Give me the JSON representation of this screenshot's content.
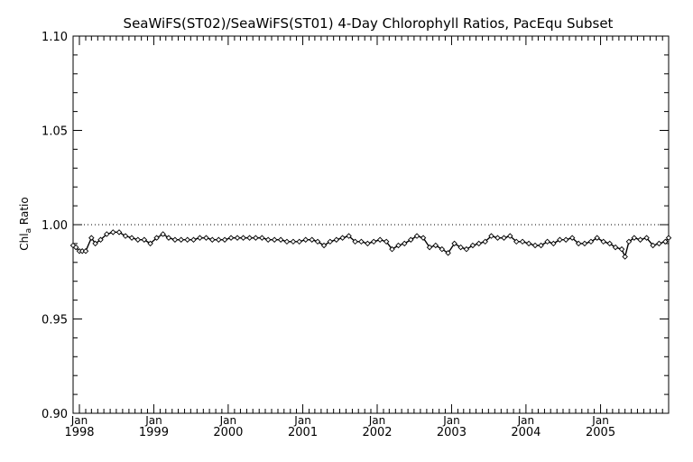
{
  "chart_data": {
    "type": "line",
    "title": "SeaWiFS(ST02)/SeaWiFS(ST01) 4-Day Chlorophyll Ratios, PacEqu Subset",
    "ylabel": "Chl",
    "ylabel_sub": "a",
    "ylabel_suffix": " Ratio",
    "xlabel": "",
    "ylim": [
      0.9,
      1.1
    ],
    "xlim": [
      "1997-12-01",
      "2005-12-01"
    ],
    "yticks": [
      {
        "value": 0.9,
        "label": "0.90"
      },
      {
        "value": 0.95,
        "label": "0.95"
      },
      {
        "value": 1.0,
        "label": "1.00"
      },
      {
        "value": 1.05,
        "label": "1.05"
      },
      {
        "value": 1.1,
        "label": "1.10"
      }
    ],
    "xticks": [
      {
        "date": "1998-01-01",
        "month": "Jan",
        "year": "1998"
      },
      {
        "date": "1999-01-01",
        "month": "Jan",
        "year": "1999"
      },
      {
        "date": "2000-01-01",
        "month": "Jan",
        "year": "2000"
      },
      {
        "date": "2001-01-01",
        "month": "Jan",
        "year": "2001"
      },
      {
        "date": "2002-01-01",
        "month": "Jan",
        "year": "2002"
      },
      {
        "date": "2003-01-01",
        "month": "Jan",
        "year": "2003"
      },
      {
        "date": "2004-01-01",
        "month": "Jan",
        "year": "2004"
      },
      {
        "date": "2005-01-01",
        "month": "Jan",
        "year": "2005"
      }
    ],
    "reference_line": 1.0,
    "series": [
      {
        "points": [
          [
            "1997-12-01",
            0.989
          ],
          [
            "1997-12-15",
            0.988
          ],
          [
            "1998-01-01",
            0.986
          ],
          [
            "1998-01-15",
            0.986
          ],
          [
            "1998-02-01",
            0.986
          ],
          [
            "1998-03-01",
            0.993
          ],
          [
            "1998-03-20",
            0.99
          ],
          [
            "1998-04-15",
            0.992
          ],
          [
            "1998-05-15",
            0.995
          ],
          [
            "1998-06-15",
            0.996
          ],
          [
            "1998-07-15",
            0.996
          ],
          [
            "1998-08-15",
            0.994
          ],
          [
            "1998-09-15",
            0.993
          ],
          [
            "1998-10-15",
            0.992
          ],
          [
            "1998-11-15",
            0.992
          ],
          [
            "1998-12-15",
            0.99
          ],
          [
            "1999-01-15",
            0.993
          ],
          [
            "1999-02-15",
            0.995
          ],
          [
            "1999-03-15",
            0.993
          ],
          [
            "1999-04-15",
            0.992
          ],
          [
            "1999-05-15",
            0.992
          ],
          [
            "1999-06-15",
            0.992
          ],
          [
            "1999-07-15",
            0.992
          ],
          [
            "1999-08-15",
            0.993
          ],
          [
            "1999-09-15",
            0.993
          ],
          [
            "1999-10-15",
            0.992
          ],
          [
            "1999-11-15",
            0.992
          ],
          [
            "1999-12-15",
            0.992
          ],
          [
            "2000-01-15",
            0.993
          ],
          [
            "2000-02-15",
            0.993
          ],
          [
            "2000-03-15",
            0.993
          ],
          [
            "2000-04-15",
            0.993
          ],
          [
            "2000-05-15",
            0.993
          ],
          [
            "2000-06-15",
            0.993
          ],
          [
            "2000-07-15",
            0.992
          ],
          [
            "2000-08-15",
            0.992
          ],
          [
            "2000-09-15",
            0.992
          ],
          [
            "2000-10-15",
            0.991
          ],
          [
            "2000-11-15",
            0.991
          ],
          [
            "2000-12-15",
            0.991
          ],
          [
            "2001-01-15",
            0.992
          ],
          [
            "2001-02-15",
            0.992
          ],
          [
            "2001-03-15",
            0.991
          ],
          [
            "2001-04-15",
            0.989
          ],
          [
            "2001-05-15",
            0.991
          ],
          [
            "2001-06-15",
            0.992
          ],
          [
            "2001-07-15",
            0.993
          ],
          [
            "2001-08-15",
            0.994
          ],
          [
            "2001-09-15",
            0.991
          ],
          [
            "2001-10-15",
            0.991
          ],
          [
            "2001-11-15",
            0.99
          ],
          [
            "2001-12-15",
            0.991
          ],
          [
            "2002-01-15",
            0.992
          ],
          [
            "2002-02-15",
            0.991
          ],
          [
            "2002-03-15",
            0.987
          ],
          [
            "2002-04-15",
            0.989
          ],
          [
            "2002-05-15",
            0.99
          ],
          [
            "2002-06-15",
            0.992
          ],
          [
            "2002-07-15",
            0.994
          ],
          [
            "2002-08-15",
            0.993
          ],
          [
            "2002-09-15",
            0.988
          ],
          [
            "2002-10-15",
            0.989
          ],
          [
            "2002-11-15",
            0.987
          ],
          [
            "2002-12-15",
            0.985
          ],
          [
            "2003-01-15",
            0.99
          ],
          [
            "2003-02-15",
            0.988
          ],
          [
            "2003-03-15",
            0.987
          ],
          [
            "2003-04-15",
            0.989
          ],
          [
            "2003-05-15",
            0.99
          ],
          [
            "2003-06-15",
            0.991
          ],
          [
            "2003-07-15",
            0.994
          ],
          [
            "2003-08-15",
            0.993
          ],
          [
            "2003-09-15",
            0.993
          ],
          [
            "2003-10-15",
            0.994
          ],
          [
            "2003-11-15",
            0.991
          ],
          [
            "2003-12-15",
            0.991
          ],
          [
            "2004-01-15",
            0.99
          ],
          [
            "2004-02-15",
            0.989
          ],
          [
            "2004-03-15",
            0.989
          ],
          [
            "2004-04-15",
            0.991
          ],
          [
            "2004-05-15",
            0.99
          ],
          [
            "2004-06-15",
            0.992
          ],
          [
            "2004-07-15",
            0.992
          ],
          [
            "2004-08-15",
            0.993
          ],
          [
            "2004-09-15",
            0.99
          ],
          [
            "2004-10-15",
            0.99
          ],
          [
            "2004-11-15",
            0.991
          ],
          [
            "2004-12-15",
            0.993
          ],
          [
            "2005-01-15",
            0.991
          ],
          [
            "2005-02-15",
            0.99
          ],
          [
            "2005-03-15",
            0.988
          ],
          [
            "2005-04-15",
            0.987
          ],
          [
            "2005-05-01",
            0.983
          ],
          [
            "2005-05-20",
            0.991
          ],
          [
            "2005-06-15",
            0.993
          ],
          [
            "2005-07-15",
            0.992
          ],
          [
            "2005-08-15",
            0.993
          ],
          [
            "2005-09-15",
            0.989
          ],
          [
            "2005-10-15",
            0.99
          ],
          [
            "2005-11-15",
            0.991
          ],
          [
            "2005-12-01",
            0.993
          ]
        ]
      }
    ]
  }
}
